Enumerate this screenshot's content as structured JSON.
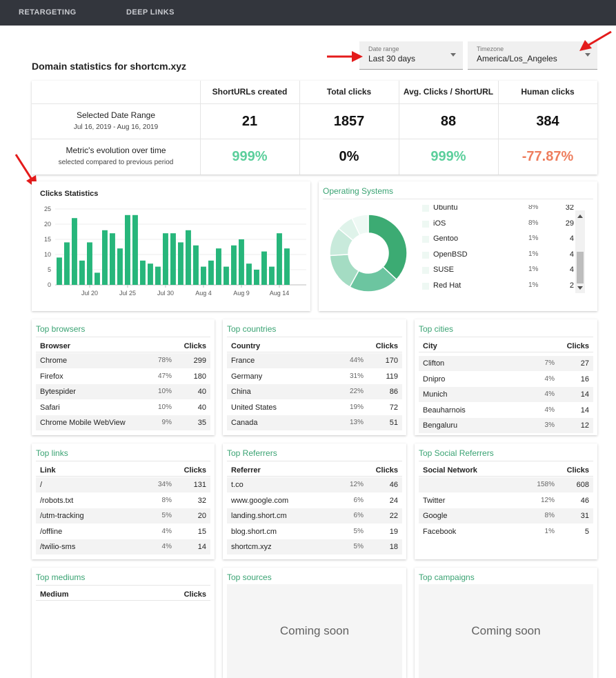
{
  "nav": {
    "items": [
      "RETARGETING",
      "DEEP LINKS"
    ]
  },
  "page": {
    "title": "Domain statistics for shortcm.xyz"
  },
  "filters": {
    "date_range": {
      "label": "Date range",
      "value": "Last 30 days"
    },
    "timezone": {
      "label": "Timezone",
      "value": "America/Los_Angeles"
    }
  },
  "colors": {
    "accent": "#3aa373",
    "positive": "#5ccf9c",
    "negative": "#ee7e5e",
    "bar": "#27b67b"
  },
  "summary": {
    "columns": [
      "ShortURLs created",
      "Total clicks",
      "Avg. Clicks / ShortURL",
      "Human clicks"
    ],
    "rows": [
      {
        "label": "Selected Date Range",
        "sub": "Jul 16, 2019 - Aug 16, 2019",
        "values": [
          "21",
          "1857",
          "88",
          "384"
        ]
      },
      {
        "label": "Metric's evolution over time",
        "sub": "selected compared to previous period",
        "values": [
          "999%",
          "0%",
          "999%",
          "-77.87%"
        ],
        "trends": [
          "up",
          "flat",
          "up",
          "down"
        ]
      }
    ]
  },
  "chart_data": {
    "type": "bar",
    "title": "Clicks Statistics",
    "xlabel": "",
    "ylabel": "",
    "ylim": [
      0,
      25
    ],
    "yticks": [
      0,
      5,
      10,
      15,
      20,
      25
    ],
    "x": [
      "Jul 16",
      "Jul 17",
      "Jul 18",
      "Jul 19",
      "Jul 20",
      "Jul 21",
      "Jul 22",
      "Jul 23",
      "Jul 24",
      "Jul 25",
      "Jul 26",
      "Jul 27",
      "Jul 28",
      "Jul 29",
      "Jul 30",
      "Jul 31",
      "Aug 1",
      "Aug 2",
      "Aug 3",
      "Aug 4",
      "Aug 5",
      "Aug 6",
      "Aug 7",
      "Aug 8",
      "Aug 9",
      "Aug 10",
      "Aug 11",
      "Aug 12",
      "Aug 13",
      "Aug 14",
      "Aug 15",
      "Aug 16"
    ],
    "values": [
      9,
      14,
      22,
      8,
      14,
      4,
      18,
      17,
      12,
      23,
      23,
      8,
      7,
      6,
      17,
      17,
      14,
      18,
      13,
      6,
      8,
      12,
      6,
      13,
      15,
      7,
      5,
      11,
      6,
      17,
      12,
      0
    ],
    "xtick_labels": [
      "Jul 20",
      "Jul 25",
      "Jul 30",
      "Aug 4",
      "Aug 9",
      "Aug 14"
    ],
    "xtick_index": [
      4,
      9,
      14,
      19,
      24,
      29
    ],
    "grid": true,
    "legend": "none"
  },
  "os": {
    "title": "Operating Systems",
    "rows": [
      {
        "name": "Ubuntu",
        "pct": "8%",
        "clicks": "32"
      },
      {
        "name": "iOS",
        "pct": "8%",
        "clicks": "29"
      },
      {
        "name": "Gentoo",
        "pct": "1%",
        "clicks": "4"
      },
      {
        "name": "OpenBSD",
        "pct": "1%",
        "clicks": "4"
      },
      {
        "name": "SUSE",
        "pct": "1%",
        "clicks": "4"
      },
      {
        "name": "Red Hat",
        "pct": "1%",
        "clicks": "2"
      }
    ],
    "donut": [
      {
        "value": 37,
        "color": "#3cab73"
      },
      {
        "value": 21,
        "color": "#6cc5a0"
      },
      {
        "value": 16,
        "color": "#a4dcc3"
      },
      {
        "value": 12,
        "color": "#c8eadb"
      },
      {
        "value": 7,
        "color": "#dff3ea"
      },
      {
        "value": 7,
        "color": "#eef9f4"
      }
    ]
  },
  "tables": {
    "browsers": {
      "title": "Top browsers",
      "col1": "Browser",
      "col2": "Clicks",
      "rows": [
        {
          "name": "Chrome",
          "pct": "78%",
          "clicks": "299"
        },
        {
          "name": "Firefox",
          "pct": "47%",
          "clicks": "180"
        },
        {
          "name": "Bytespider",
          "pct": "10%",
          "clicks": "40"
        },
        {
          "name": "Safari",
          "pct": "10%",
          "clicks": "40"
        },
        {
          "name": "Chrome Mobile WebView",
          "pct": "9%",
          "clicks": "35"
        }
      ]
    },
    "countries": {
      "title": "Top countries",
      "col1": "Country",
      "col2": "Clicks",
      "rows": [
        {
          "name": "France",
          "pct": "44%",
          "clicks": "170"
        },
        {
          "name": "Germany",
          "pct": "31%",
          "clicks": "119"
        },
        {
          "name": "China",
          "pct": "22%",
          "clicks": "86"
        },
        {
          "name": "United States",
          "pct": "19%",
          "clicks": "72"
        },
        {
          "name": "Canada",
          "pct": "13%",
          "clicks": "51"
        }
      ]
    },
    "cities": {
      "title": "Top cities",
      "col1": "City",
      "col2": "Clicks",
      "rows": [
        {
          "name": "Clifton",
          "pct": "7%",
          "clicks": "27"
        },
        {
          "name": "Dnipro",
          "pct": "4%",
          "clicks": "16"
        },
        {
          "name": "Munich",
          "pct": "4%",
          "clicks": "14"
        },
        {
          "name": "Beauharnois",
          "pct": "4%",
          "clicks": "14"
        },
        {
          "name": "Bengaluru",
          "pct": "3%",
          "clicks": "12"
        }
      ]
    },
    "links": {
      "title": "Top links",
      "col1": "Link",
      "col2": "Clicks",
      "rows": [
        {
          "name": "/",
          "pct": "34%",
          "clicks": "131"
        },
        {
          "name": "/robots.txt",
          "pct": "8%",
          "clicks": "32"
        },
        {
          "name": "/utm-tracking",
          "pct": "5%",
          "clicks": "20"
        },
        {
          "name": "/offline",
          "pct": "4%",
          "clicks": "15"
        },
        {
          "name": "/twilio-sms",
          "pct": "4%",
          "clicks": "14"
        }
      ]
    },
    "referrers": {
      "title": "Top Referrers",
      "col1": "Referrer",
      "col2": "Clicks",
      "rows": [
        {
          "name": "t.co",
          "pct": "12%",
          "clicks": "46"
        },
        {
          "name": "www.google.com",
          "pct": "6%",
          "clicks": "24"
        },
        {
          "name": "landing.short.cm",
          "pct": "6%",
          "clicks": "22"
        },
        {
          "name": "blog.short.cm",
          "pct": "5%",
          "clicks": "19"
        },
        {
          "name": "shortcm.xyz",
          "pct": "5%",
          "clicks": "18"
        }
      ]
    },
    "social": {
      "title": "Top Social Referrers",
      "col1": "Social Network",
      "col2": "Clicks",
      "rows": [
        {
          "name": "",
          "pct": "158%",
          "clicks": "608"
        },
        {
          "name": "Twitter",
          "pct": "12%",
          "clicks": "46"
        },
        {
          "name": "Google",
          "pct": "8%",
          "clicks": "31"
        },
        {
          "name": "Facebook",
          "pct": "1%",
          "clicks": "5"
        }
      ]
    },
    "mediums": {
      "title": "Top mediums",
      "col1": "Medium",
      "col2": "Clicks",
      "rows": []
    }
  },
  "coming_soon": {
    "sources": {
      "title": "Top sources",
      "text": "Coming soon"
    },
    "campaigns": {
      "title": "Top campaigns",
      "text": "Coming soon"
    }
  }
}
